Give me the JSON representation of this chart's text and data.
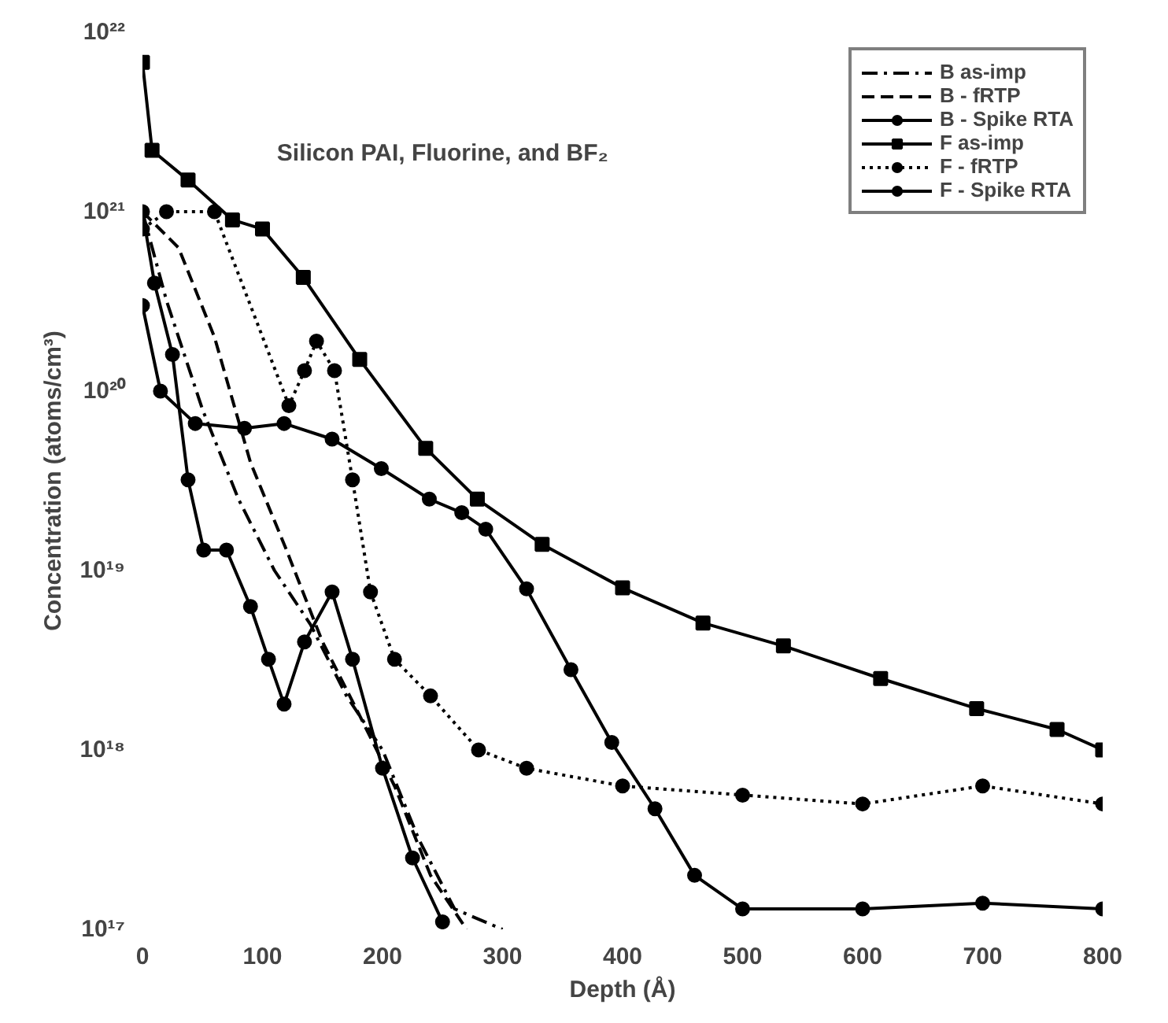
{
  "chart_data": {
    "type": "line",
    "xlabel": "Depth (Å)",
    "ylabel": "Concentration (atoms/cm³)",
    "annotations": [
      "Silicon PAI, Fluorine, and BF₂"
    ],
    "log": "y",
    "xlim": [
      0,
      800
    ],
    "ylim": [
      1e+17,
      1e+22
    ],
    "xticks": [
      0,
      100,
      200,
      300,
      400,
      500,
      600,
      700,
      800
    ],
    "yticks": [
      {
        "value": 1e+17,
        "label": "10¹⁷"
      },
      {
        "value": 1e+18,
        "label": "10¹⁸"
      },
      {
        "value": 1e+19,
        "label": "10¹⁹"
      },
      {
        "value": 1e+20,
        "label": "10²⁰"
      },
      {
        "value": 1e+21,
        "label": "10²¹"
      },
      {
        "value": 1e+22,
        "label": "10²²"
      }
    ],
    "grid": false,
    "legend": "top right",
    "series": [
      {
        "name": "B as-imp",
        "color": "#000000",
        "line_style": "dashdot",
        "marker": "none",
        "x": [
          0,
          20,
          50,
          80,
          110,
          140,
          170,
          200,
          230,
          260,
          300
        ],
        "values": [
          1e+21,
          3.2e+20,
          7.9e+19,
          2.5e+19,
          1e+19,
          5e+18,
          2e+18,
          1e+18,
          3.2e+17,
          1.3e+17,
          1e+17
        ]
      },
      {
        "name": "B - fRTP",
        "color": "#000000",
        "line_style": "dashed",
        "marker": "none",
        "x": [
          0,
          30,
          60,
          90,
          120,
          150,
          180,
          210,
          240,
          270
        ],
        "values": [
          1e+21,
          6.3e+20,
          2e+20,
          4e+19,
          1.3e+19,
          4e+18,
          1.6e+18,
          6.3e+17,
          2e+17,
          1e+17
        ]
      },
      {
        "name": "B - Spike RTA",
        "color": "#000000",
        "line_style": "solid",
        "marker": "circle",
        "x": [
          0,
          15,
          44,
          85,
          118,
          158,
          199,
          239,
          266,
          286,
          320,
          357,
          391,
          427,
          460,
          500,
          600,
          700,
          800
        ],
        "values": [
          3e+20,
          1e+20,
          6.6e+19,
          6.2e+19,
          6.6e+19,
          5.4e+19,
          3.7e+19,
          2.5e+19,
          2.1e+19,
          1.7e+19,
          7.9e+18,
          2.8e+18,
          1.1e+18,
          4.7e+17,
          2e+17,
          1.3e+17,
          1.3e+17,
          1.4e+17,
          1.3e+17
        ]
      },
      {
        "name": "F as-imp",
        "color": "#000000",
        "line_style": "solid",
        "marker": "square",
        "x": [
          0,
          8,
          38,
          75,
          100,
          134,
          181,
          236,
          279,
          333,
          400,
          467,
          534,
          615,
          695,
          762,
          800
        ],
        "values": [
          6.8e+21,
          2.2e+21,
          1.5e+21,
          9e+20,
          8e+20,
          4.3e+20,
          1.5e+20,
          4.8e+19,
          2.5e+19,
          1.4e+19,
          8e+18,
          5.1e+18,
          3.8e+18,
          2.5e+18,
          1.7e+18,
          1.3e+18,
          1e+18
        ]
      },
      {
        "name": "F - fRTP",
        "color": "#000000",
        "line_style": "dotted",
        "marker": "circle",
        "x": [
          0,
          20,
          60,
          122,
          135,
          145,
          160,
          175,
          190,
          210,
          240,
          280,
          320,
          400,
          500,
          600,
          700,
          800
        ],
        "values": [
          8e+20,
          1e+21,
          1e+21,
          8.3e+19,
          1.3e+20,
          1.9e+20,
          1.3e+20,
          3.2e+19,
          7.6e+18,
          3.2e+18,
          2e+18,
          1e+18,
          7.9e+17,
          6.3e+17,
          5.6e+17,
          5e+17,
          6.3e+17,
          5e+17
        ]
      },
      {
        "name": "F - Spike RTA",
        "color": "#000000",
        "line_style": "solid",
        "marker": "circle",
        "x": [
          0,
          10,
          25,
          38,
          51,
          70,
          90,
          105,
          118,
          135,
          158,
          175,
          200,
          225,
          250
        ],
        "values": [
          1e+21,
          4e+20,
          1.6e+20,
          3.2e+19,
          1.3e+19,
          1.3e+19,
          6.3e+18,
          3.2e+18,
          1.8e+18,
          4e+18,
          7.6e+18,
          3.2e+18,
          7.9e+17,
          2.5e+17,
          1.1e+17
        ]
      }
    ]
  }
}
